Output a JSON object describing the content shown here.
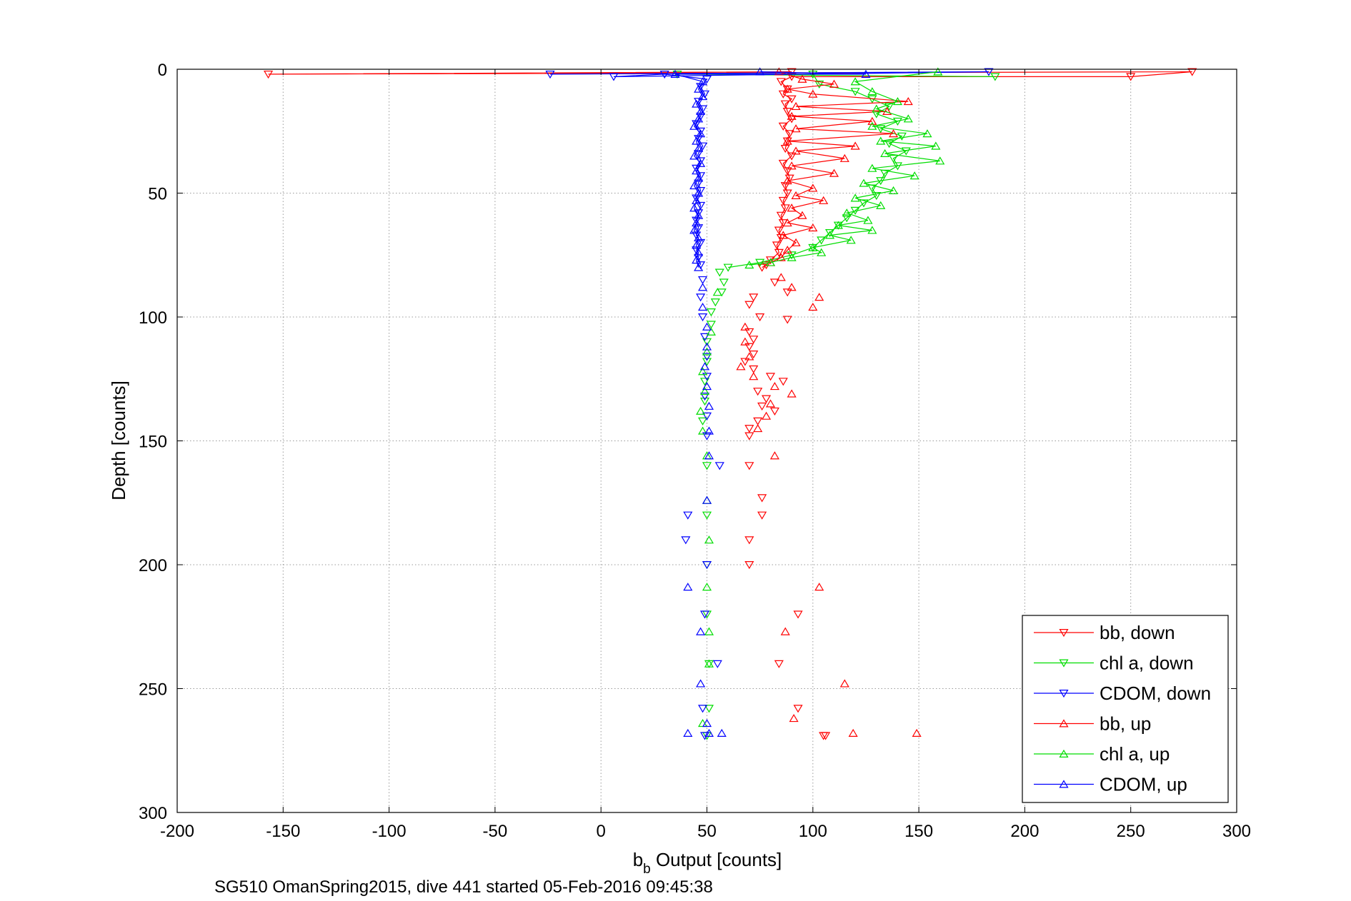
{
  "chart_data": {
    "type": "scatter",
    "caption": "SG510 OmanSpring2015, dive 441 started 05-Feb-2016 09:45:38",
    "xlabel_main": "b",
    "xlabel_sub": "b",
    "xlabel_rest": " Output [counts]",
    "ylabel": "Depth [counts]",
    "xlim": [
      -200,
      300
    ],
    "ylim": [
      0,
      300
    ],
    "y_reversed": true,
    "xticks": [
      -200,
      -150,
      -100,
      -50,
      0,
      50,
      100,
      150,
      200,
      250,
      300
    ],
    "yticks": [
      0,
      50,
      100,
      150,
      200,
      250,
      300
    ],
    "grid": true,
    "legend_position": "bottom-right",
    "series": [
      {
        "name": "bb, down",
        "color": "#ff0000",
        "marker": "triangle-down",
        "line": true,
        "points": [
          [
            90,
            1
          ],
          [
            -157,
            2
          ],
          [
            279,
            1
          ],
          [
            250,
            3
          ],
          [
            90,
            3
          ],
          [
            85,
            5
          ],
          [
            88,
            8
          ],
          [
            86,
            10
          ],
          [
            90,
            12
          ],
          [
            87,
            14
          ],
          [
            88,
            17
          ],
          [
            90,
            20
          ],
          [
            86,
            23
          ],
          [
            89,
            26
          ],
          [
            88,
            29
          ],
          [
            87,
            32
          ],
          [
            90,
            35
          ],
          [
            86,
            38
          ],
          [
            88,
            41
          ],
          [
            89,
            44
          ],
          [
            87,
            47
          ],
          [
            88,
            50
          ],
          [
            86,
            53
          ],
          [
            87,
            56
          ],
          [
            85,
            59
          ],
          [
            86,
            62
          ],
          [
            84,
            65
          ],
          [
            85,
            68
          ],
          [
            83,
            71
          ],
          [
            84,
            74
          ],
          [
            80,
            77
          ],
          [
            78,
            79
          ],
          [
            76,
            80
          ]
        ],
        "scatter_points": [
          [
            82,
            86
          ],
          [
            88,
            90
          ],
          [
            72,
            92
          ],
          [
            70,
            95
          ],
          [
            75,
            100
          ],
          [
            88,
            101
          ],
          [
            70,
            106
          ],
          [
            72,
            109
          ],
          [
            70,
            112
          ],
          [
            72,
            115
          ],
          [
            68,
            118
          ],
          [
            72,
            121
          ],
          [
            80,
            124
          ],
          [
            86,
            126
          ],
          [
            74,
            130
          ],
          [
            78,
            133
          ],
          [
            76,
            136
          ],
          [
            82,
            138
          ],
          [
            74,
            142
          ],
          [
            70,
            145
          ],
          [
            70,
            148
          ],
          [
            70,
            160
          ],
          [
            76,
            173
          ],
          [
            76,
            180
          ],
          [
            70,
            190
          ],
          [
            70,
            200
          ],
          [
            93,
            220
          ],
          [
            84,
            240
          ],
          [
            93,
            258
          ],
          [
            105,
            269
          ],
          [
            106,
            269
          ]
        ]
      },
      {
        "name": "chl a, down",
        "color": "#00dd00",
        "marker": "triangle-down",
        "line": true,
        "points": [
          [
            186,
            3
          ],
          [
            36,
            2
          ],
          [
            100,
            2
          ],
          [
            103,
            6
          ],
          [
            120,
            9
          ],
          [
            128,
            12
          ],
          [
            136,
            15
          ],
          [
            130,
            18
          ],
          [
            140,
            21
          ],
          [
            132,
            24
          ],
          [
            142,
            27
          ],
          [
            136,
            30
          ],
          [
            144,
            33
          ],
          [
            138,
            36
          ],
          [
            140,
            39
          ],
          [
            134,
            42
          ],
          [
            132,
            45
          ],
          [
            128,
            48
          ],
          [
            130,
            51
          ],
          [
            124,
            54
          ],
          [
            120,
            57
          ],
          [
            116,
            60
          ],
          [
            112,
            63
          ],
          [
            108,
            66
          ],
          [
            104,
            69
          ],
          [
            100,
            72
          ],
          [
            90,
            75
          ],
          [
            75,
            78
          ],
          [
            60,
            80
          ]
        ],
        "scatter_points": [
          [
            56,
            82
          ],
          [
            58,
            86
          ],
          [
            57,
            90
          ],
          [
            54,
            94
          ],
          [
            52,
            98
          ],
          [
            52,
            103
          ],
          [
            50,
            110
          ],
          [
            50,
            118
          ],
          [
            49,
            126
          ],
          [
            49,
            134
          ],
          [
            48,
            142
          ],
          [
            50,
            160
          ],
          [
            50,
            180
          ],
          [
            50,
            200
          ],
          [
            50,
            220
          ],
          [
            51,
            240
          ],
          [
            51,
            258
          ],
          [
            50,
            269
          ]
        ]
      },
      {
        "name": "CDOM, down",
        "color": "#0000ff",
        "marker": "triangle-down",
        "line": true,
        "points": [
          [
            -24,
            2
          ],
          [
            183,
            1
          ],
          [
            6,
            3
          ],
          [
            30,
            2
          ],
          [
            50,
            4
          ],
          [
            47,
            7
          ],
          [
            49,
            10
          ],
          [
            46,
            13
          ],
          [
            48,
            16
          ],
          [
            47,
            19
          ],
          [
            45,
            22
          ],
          [
            47,
            25
          ],
          [
            46,
            28
          ],
          [
            48,
            31
          ],
          [
            46,
            34
          ],
          [
            47,
            37
          ],
          [
            45,
            40
          ],
          [
            47,
            43
          ],
          [
            46,
            46
          ],
          [
            47,
            49
          ],
          [
            45,
            52
          ],
          [
            47,
            55
          ],
          [
            46,
            58
          ],
          [
            45,
            61
          ],
          [
            46,
            64
          ],
          [
            45,
            67
          ],
          [
            47,
            70
          ],
          [
            45,
            73
          ],
          [
            46,
            76
          ],
          [
            47,
            79
          ]
        ],
        "scatter_points": [
          [
            48,
            85
          ],
          [
            47,
            92
          ],
          [
            48,
            100
          ],
          [
            49,
            108
          ],
          [
            50,
            116
          ],
          [
            50,
            124
          ],
          [
            49,
            132
          ],
          [
            50,
            140
          ],
          [
            50,
            148
          ],
          [
            56,
            160
          ],
          [
            41,
            180
          ],
          [
            40,
            190
          ],
          [
            50,
            200
          ],
          [
            49,
            220
          ],
          [
            55,
            240
          ],
          [
            48,
            258
          ],
          [
            49,
            269
          ]
        ]
      },
      {
        "name": "bb, up",
        "color": "#ff0000",
        "marker": "triangle-up",
        "line": true,
        "points": [
          [
            84,
            1
          ],
          [
            95,
            4
          ],
          [
            110,
            6
          ],
          [
            88,
            8
          ],
          [
            100,
            10
          ],
          [
            145,
            13
          ],
          [
            92,
            15
          ],
          [
            135,
            17
          ],
          [
            90,
            19
          ],
          [
            128,
            21
          ],
          [
            92,
            24
          ],
          [
            138,
            26
          ],
          [
            88,
            29
          ],
          [
            120,
            31
          ],
          [
            92,
            33
          ],
          [
            115,
            36
          ],
          [
            90,
            39
          ],
          [
            110,
            42
          ],
          [
            88,
            45
          ],
          [
            100,
            48
          ],
          [
            92,
            51
          ],
          [
            105,
            53
          ],
          [
            90,
            56
          ],
          [
            95,
            59
          ],
          [
            88,
            62
          ],
          [
            100,
            64
          ],
          [
            86,
            67
          ],
          [
            92,
            70
          ],
          [
            88,
            73
          ],
          [
            85,
            76
          ],
          [
            80,
            78
          ]
        ],
        "scatter_points": [
          [
            85,
            84
          ],
          [
            90,
            88
          ],
          [
            103,
            92
          ],
          [
            100,
            96
          ],
          [
            68,
            104
          ],
          [
            68,
            110
          ],
          [
            70,
            116
          ],
          [
            66,
            120
          ],
          [
            72,
            124
          ],
          [
            82,
            128
          ],
          [
            90,
            131
          ],
          [
            80,
            135
          ],
          [
            78,
            140
          ],
          [
            74,
            145
          ],
          [
            82,
            156
          ],
          [
            103,
            209
          ],
          [
            87,
            227
          ],
          [
            115,
            248
          ],
          [
            91,
            262
          ],
          [
            149,
            268
          ],
          [
            119,
            268
          ]
        ]
      },
      {
        "name": "chl a, up",
        "color": "#00dd00",
        "marker": "triangle-up",
        "line": true,
        "points": [
          [
            159,
            1
          ],
          [
            120,
            5
          ],
          [
            128,
            9
          ],
          [
            140,
            13
          ],
          [
            130,
            16
          ],
          [
            145,
            20
          ],
          [
            128,
            23
          ],
          [
            154,
            26
          ],
          [
            132,
            29
          ],
          [
            158,
            31
          ],
          [
            134,
            34
          ],
          [
            160,
            37
          ],
          [
            128,
            40
          ],
          [
            148,
            43
          ],
          [
            124,
            46
          ],
          [
            138,
            49
          ],
          [
            120,
            52
          ],
          [
            132,
            55
          ],
          [
            116,
            58
          ],
          [
            126,
            61
          ],
          [
            112,
            63
          ],
          [
            128,
            65
          ],
          [
            108,
            67
          ],
          [
            118,
            69
          ],
          [
            100,
            72
          ],
          [
            104,
            74
          ],
          [
            90,
            76
          ],
          [
            80,
            78
          ],
          [
            70,
            79
          ]
        ],
        "scatter_points": [
          [
            55,
            90
          ],
          [
            52,
            106
          ],
          [
            50,
            114
          ],
          [
            48,
            122
          ],
          [
            49,
            130
          ],
          [
            47,
            138
          ],
          [
            48,
            146
          ],
          [
            50,
            156
          ],
          [
            50,
            174
          ],
          [
            51,
            190
          ],
          [
            50,
            209
          ],
          [
            51,
            227
          ],
          [
            51,
            240
          ],
          [
            48,
            264
          ]
        ]
      },
      {
        "name": "CDOM, up",
        "color": "#0000ff",
        "marker": "triangle-up",
        "line": true,
        "points": [
          [
            75,
            1
          ],
          [
            125,
            2
          ],
          [
            35,
            2
          ],
          [
            48,
            5
          ],
          [
            46,
            8
          ],
          [
            48,
            11
          ],
          [
            45,
            14
          ],
          [
            47,
            17
          ],
          [
            46,
            20
          ],
          [
            44,
            23
          ],
          [
            47,
            26
          ],
          [
            45,
            29
          ],
          [
            46,
            32
          ],
          [
            44,
            35
          ],
          [
            47,
            38
          ],
          [
            45,
            41
          ],
          [
            46,
            44
          ],
          [
            44,
            47
          ],
          [
            46,
            50
          ],
          [
            45,
            53
          ],
          [
            44,
            56
          ],
          [
            46,
            59
          ],
          [
            45,
            62
          ],
          [
            44,
            65
          ],
          [
            46,
            68
          ],
          [
            45,
            71
          ],
          [
            46,
            74
          ],
          [
            45,
            77
          ],
          [
            46,
            80
          ]
        ],
        "scatter_points": [
          [
            48,
            88
          ],
          [
            48,
            96
          ],
          [
            50,
            104
          ],
          [
            50,
            112
          ],
          [
            49,
            120
          ],
          [
            50,
            128
          ],
          [
            51,
            136
          ],
          [
            51,
            146
          ],
          [
            51,
            156
          ],
          [
            50,
            174
          ],
          [
            41,
            209
          ],
          [
            47,
            227
          ],
          [
            47,
            248
          ],
          [
            50,
            264
          ],
          [
            41,
            268
          ],
          [
            51,
            268
          ],
          [
            57,
            268
          ]
        ]
      }
    ]
  }
}
